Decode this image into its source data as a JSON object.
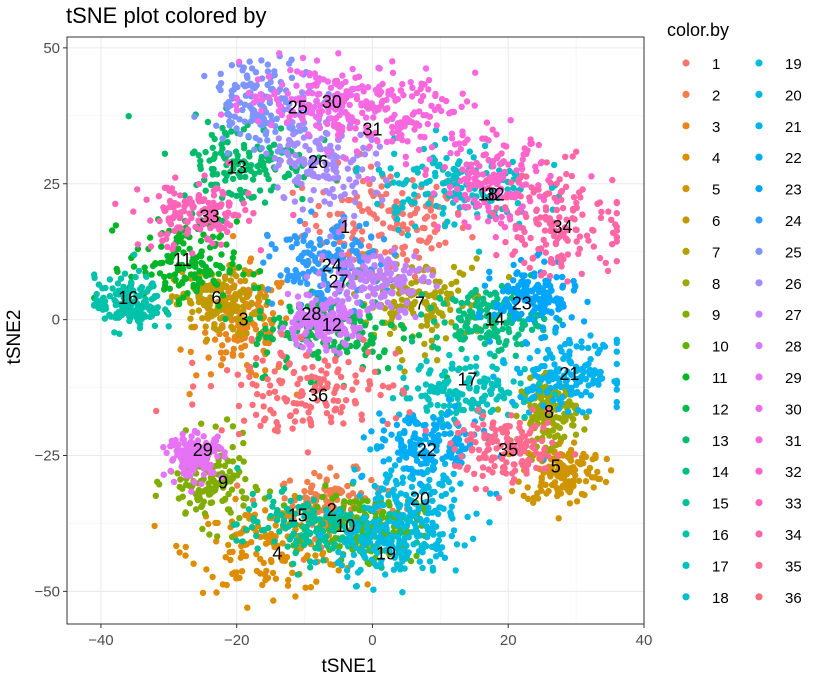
{
  "chart_data": {
    "type": "scatter",
    "title": "tSNE plot colored by",
    "xlabel": "tSNE1",
    "ylabel": "tSNE2",
    "xlim": [
      -45,
      40
    ],
    "ylim": [
      -56,
      52
    ],
    "xticks": [
      -40,
      -20,
      0,
      20,
      40
    ],
    "yticks": [
      -50,
      -25,
      0,
      25,
      50
    ],
    "xtick_labels": [
      "−40",
      "−20",
      "0",
      "20",
      "40"
    ],
    "ytick_labels": [
      "−50",
      "−25",
      "0",
      "25",
      "50"
    ],
    "grid": true,
    "legend": {
      "title": "color.by",
      "position": "right",
      "columns": 2
    },
    "series": [
      {
        "name": "1",
        "color": "#F8766D",
        "cx": 2,
        "cy": 18,
        "sx": 6,
        "sy": 5,
        "label_x": -4,
        "label_y": 17
      },
      {
        "name": "2",
        "color": "#F07F4D",
        "cx": -6,
        "cy": -34,
        "sx": 4,
        "sy": 3,
        "label_x": -6,
        "label_y": -35
      },
      {
        "name": "3",
        "color": "#E7861B",
        "cx": -19,
        "cy": -1,
        "sx": 3.5,
        "sy": 5,
        "label_x": -19,
        "label_y": 0
      },
      {
        "name": "4",
        "color": "#DC8D00",
        "cx": -15,
        "cy": -42,
        "sx": 6,
        "sy": 4,
        "label_x": -14,
        "label_y": -43
      },
      {
        "name": "5",
        "color": "#D09400",
        "cx": 28,
        "cy": -28,
        "sx": 3,
        "sy": 3,
        "label_x": 27,
        "label_y": -27
      },
      {
        "name": "6",
        "color": "#C19A00",
        "cx": -23,
        "cy": 3,
        "sx": 3,
        "sy": 3,
        "label_x": -23,
        "label_y": 4
      },
      {
        "name": "7",
        "color": "#AFA100",
        "cx": 7,
        "cy": 3,
        "sx": 5,
        "sy": 4,
        "label_x": 7,
        "label_y": 3
      },
      {
        "name": "8",
        "color": "#9AA800",
        "cx": 26,
        "cy": -17,
        "sx": 2,
        "sy": 3,
        "label_x": 26,
        "label_y": -17
      },
      {
        "name": "9",
        "color": "#81AD00",
        "cx": -24,
        "cy": -30,
        "sx": 3,
        "sy": 4,
        "label_x": -22,
        "label_y": -30
      },
      {
        "name": "10",
        "color": "#5FB200",
        "cx": -1,
        "cy": -38,
        "sx": 4,
        "sy": 3,
        "label_x": -4,
        "label_y": -38
      },
      {
        "name": "11",
        "color": "#00B626",
        "cx": -28,
        "cy": 10,
        "sx": 4,
        "sy": 4,
        "label_x": -28,
        "label_y": 11
      },
      {
        "name": "12",
        "color": "#00B94E",
        "cx": -6,
        "cy": -2,
        "sx": 6,
        "sy": 4,
        "label_x": -6,
        "label_y": -1
      },
      {
        "name": "13",
        "color": "#00BC6A",
        "cx": -19,
        "cy": 29,
        "sx": 5,
        "sy": 4,
        "label_x": -20,
        "label_y": 28
      },
      {
        "name": "14",
        "color": "#00BE82",
        "cx": 17,
        "cy": 0,
        "sx": 4,
        "sy": 3,
        "label_x": 18,
        "label_y": 0
      },
      {
        "name": "15",
        "color": "#00C097",
        "cx": -10,
        "cy": -38,
        "sx": 5,
        "sy": 3,
        "label_x": -11,
        "label_y": -36
      },
      {
        "name": "16",
        "color": "#00C1AA",
        "cx": -36,
        "cy": 3,
        "sx": 2.5,
        "sy": 2.5,
        "label_x": -36,
        "label_y": 4
      },
      {
        "name": "17",
        "color": "#00C1BB",
        "cx": 14,
        "cy": -13,
        "sx": 5,
        "sy": 3,
        "label_x": 14,
        "label_y": -11
      },
      {
        "name": "18",
        "color": "#00BFCA",
        "cx": 12,
        "cy": 25,
        "sx": 6,
        "sy": 4,
        "label_x": 17,
        "label_y": 23
      },
      {
        "name": "19",
        "color": "#00BCD8",
        "cx": 3,
        "cy": -42,
        "sx": 4,
        "sy": 3,
        "label_x": 2,
        "label_y": -43
      },
      {
        "name": "20",
        "color": "#00B8E4",
        "cx": 6,
        "cy": -34,
        "sx": 5,
        "sy": 5,
        "label_x": 7,
        "label_y": -33
      },
      {
        "name": "21",
        "color": "#00B2EE",
        "cx": 29,
        "cy": -10,
        "sx": 4,
        "sy": 3,
        "label_x": 29,
        "label_y": -10
      },
      {
        "name": "22",
        "color": "#00ACF6",
        "cx": 8,
        "cy": -23,
        "sx": 4,
        "sy": 3,
        "label_x": 8,
        "label_y": -24
      },
      {
        "name": "23",
        "color": "#00A5FC",
        "cx": 24,
        "cy": 4,
        "sx": 3,
        "sy": 3,
        "label_x": 22,
        "label_y": 3
      },
      {
        "name": "24",
        "color": "#2F9CFF",
        "cx": -7,
        "cy": 10,
        "sx": 4,
        "sy": 4,
        "label_x": -6,
        "label_y": 10
      },
      {
        "name": "25",
        "color": "#7E94FF",
        "cx": -16,
        "cy": 40,
        "sx": 4,
        "sy": 4,
        "label_x": -11,
        "label_y": 39
      },
      {
        "name": "26",
        "color": "#A68BFF",
        "cx": -7,
        "cy": 30,
        "sx": 4,
        "sy": 5,
        "label_x": -8,
        "label_y": 29
      },
      {
        "name": "27",
        "color": "#C282FF",
        "cx": 0,
        "cy": 7,
        "sx": 4,
        "sy": 3,
        "label_x": -5,
        "label_y": 7
      },
      {
        "name": "28",
        "color": "#D77AFF",
        "cx": -8,
        "cy": -1,
        "sx": 3,
        "sy": 2,
        "label_x": -9,
        "label_y": 1
      },
      {
        "name": "29",
        "color": "#E672F6",
        "cx": -26,
        "cy": -25,
        "sx": 2,
        "sy": 2,
        "label_x": -25,
        "label_y": -24
      },
      {
        "name": "30",
        "color": "#F16BEA",
        "cx": -7,
        "cy": 41,
        "sx": 6,
        "sy": 3,
        "label_x": -6,
        "label_y": 40
      },
      {
        "name": "31",
        "color": "#F967DC",
        "cx": 4,
        "cy": 37,
        "sx": 6,
        "sy": 4,
        "label_x": 0,
        "label_y": 35
      },
      {
        "name": "32",
        "color": "#FE64CC",
        "cx": 18,
        "cy": 25,
        "sx": 4,
        "sy": 4,
        "label_x": 18,
        "label_y": 23
      },
      {
        "name": "33",
        "color": "#FF64B9",
        "cx": -26,
        "cy": 19,
        "sx": 4,
        "sy": 3,
        "label_x": -24,
        "label_y": 19
      },
      {
        "name": "34",
        "color": "#FF66A5",
        "cx": 28,
        "cy": 18,
        "sx": 5,
        "sy": 5,
        "label_x": 28,
        "label_y": 17
      },
      {
        "name": "35",
        "color": "#FF6A8F",
        "cx": 20,
        "cy": -24,
        "sx": 4,
        "sy": 3,
        "label_x": 20,
        "label_y": -24
      },
      {
        "name": "36",
        "color": "#FC6F79",
        "cx": -10,
        "cy": -13,
        "sx": 7,
        "sy": 4,
        "label_x": -8,
        "label_y": -14
      }
    ]
  }
}
